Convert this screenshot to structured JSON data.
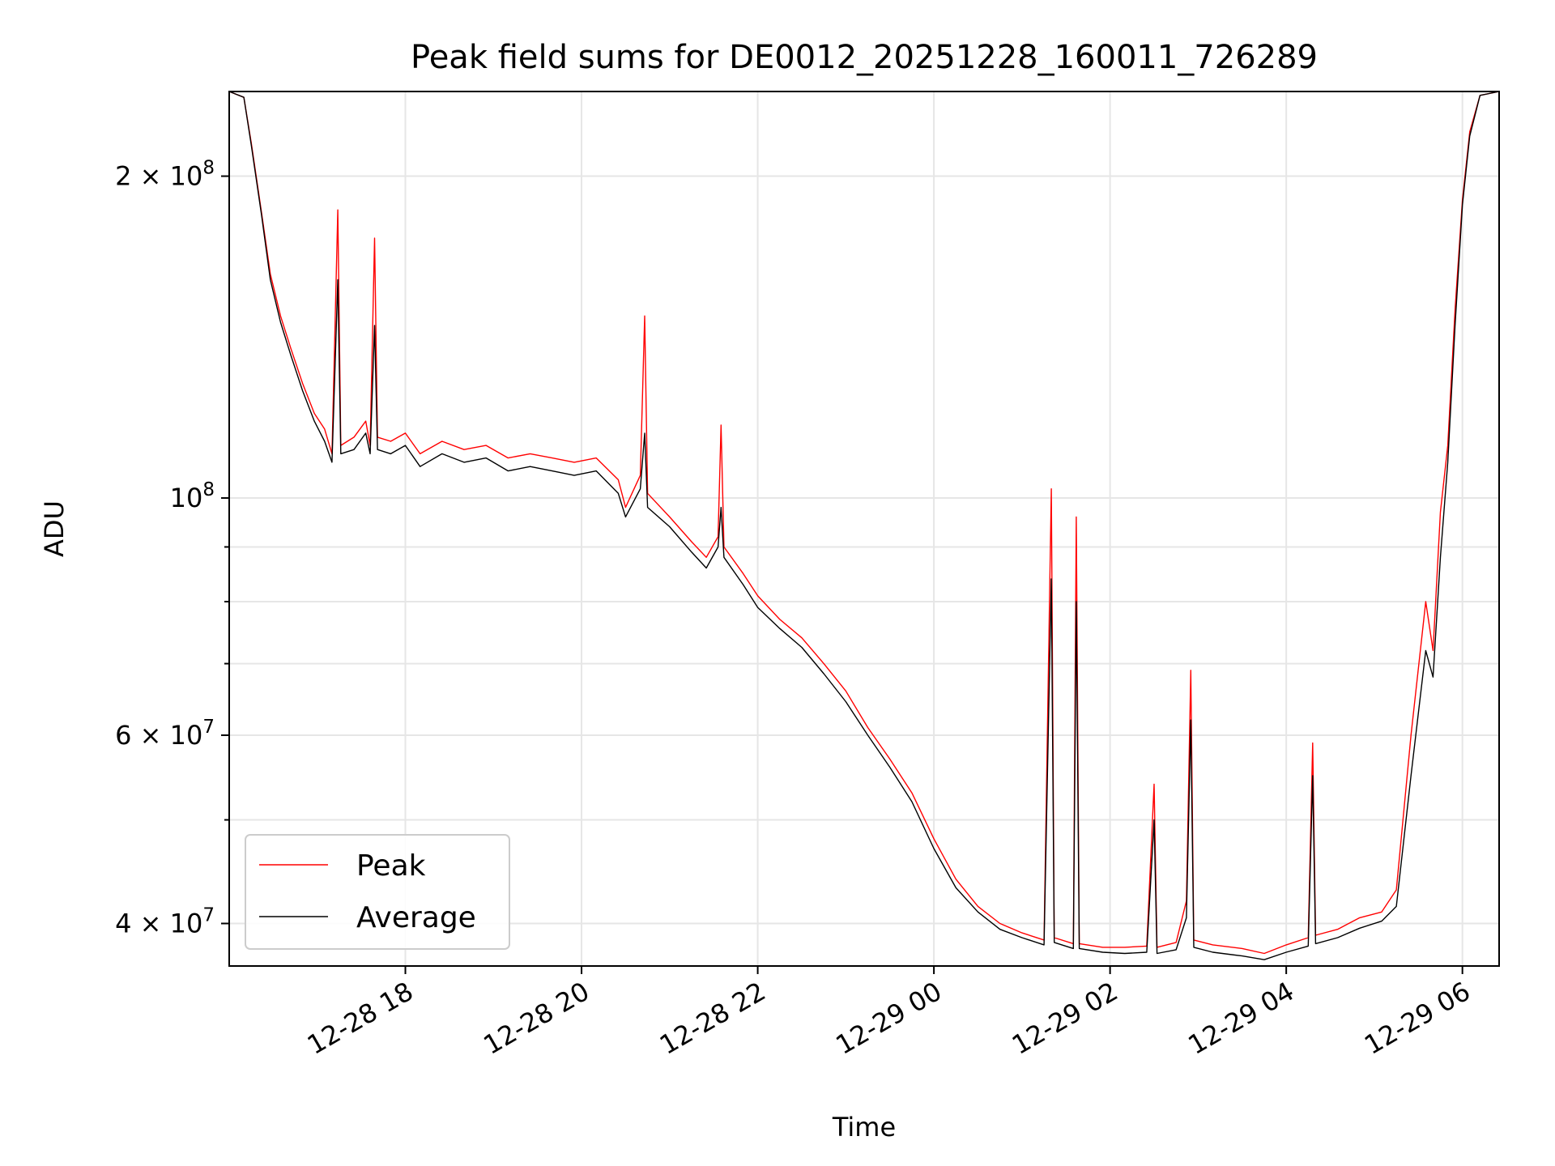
{
  "chart_data": {
    "type": "line",
    "title": "Peak field sums for DE0012_20251228_160011_726289",
    "xlabel": "Time",
    "ylabel": "ADU",
    "yscale": "log",
    "ylim": [
      36500000,
      240000000
    ],
    "xlim": [
      "2025-12-28 16:00",
      "2025-12-29 06:25"
    ],
    "grid": true,
    "legend": "lower-left",
    "x_ticks": [
      {
        "value": "2025-12-28 18:00",
        "label": "12-28 18"
      },
      {
        "value": "2025-12-28 20:00",
        "label": "12-28 20"
      },
      {
        "value": "2025-12-28 22:00",
        "label": "12-28 22"
      },
      {
        "value": "2025-12-29 00:00",
        "label": "12-29 00"
      },
      {
        "value": "2025-12-29 02:00",
        "label": "12-29 02"
      },
      {
        "value": "2025-12-29 04:00",
        "label": "12-29 04"
      },
      {
        "value": "2025-12-29 06:00",
        "label": "12-29 06"
      }
    ],
    "y_ticks": [
      {
        "value": 200000000,
        "label": "2 × 10⁸",
        "mant": "2 × 10",
        "exp": "8"
      },
      {
        "value": 100000000,
        "label": "10⁸",
        "mant": "10",
        "exp": "8"
      },
      {
        "value": 60000000,
        "label": "6 × 10⁷",
        "mant": "6 × 10",
        "exp": "7"
      },
      {
        "value": 40000000,
        "label": "4 × 10⁷",
        "mant": "4 × 10",
        "exp": "7"
      }
    ],
    "y_minor_ticks": [
      50000000,
      70000000,
      80000000,
      90000000,
      300000000
    ],
    "series": [
      {
        "name": "Peak",
        "color": "#ff0000",
        "points": [
          [
            "2025-12-28 16:00",
            240000000
          ],
          [
            "2025-12-28 16:10",
            237000000
          ],
          [
            "2025-12-28 16:15",
            215000000
          ],
          [
            "2025-12-28 16:22",
            185000000
          ],
          [
            "2025-12-28 16:28",
            162000000
          ],
          [
            "2025-12-28 16:35",
            148000000
          ],
          [
            "2025-12-28 16:42",
            138000000
          ],
          [
            "2025-12-28 16:50",
            128000000
          ],
          [
            "2025-12-28 16:58",
            120000000
          ],
          [
            "2025-12-28 17:05",
            116000000
          ],
          [
            "2025-12-28 17:10",
            110000000
          ],
          [
            "2025-12-28 17:14",
            186000000
          ],
          [
            "2025-12-28 17:16",
            112000000
          ],
          [
            "2025-12-28 17:25",
            114000000
          ],
          [
            "2025-12-28 17:33",
            118000000
          ],
          [
            "2025-12-28 17:36",
            112000000
          ],
          [
            "2025-12-28 17:39",
            175000000
          ],
          [
            "2025-12-28 17:41",
            114000000
          ],
          [
            "2025-12-28 17:50",
            113000000
          ],
          [
            "2025-12-28 18:00",
            115000000
          ],
          [
            "2025-12-28 18:10",
            110000000
          ],
          [
            "2025-12-28 18:25",
            113000000
          ],
          [
            "2025-12-28 18:40",
            111000000
          ],
          [
            "2025-12-28 18:55",
            112000000
          ],
          [
            "2025-12-28 19:10",
            109000000
          ],
          [
            "2025-12-28 19:25",
            110000000
          ],
          [
            "2025-12-28 19:40",
            109000000
          ],
          [
            "2025-12-28 19:55",
            108000000
          ],
          [
            "2025-12-28 20:10",
            109000000
          ],
          [
            "2025-12-28 20:25",
            104000000
          ],
          [
            "2025-12-28 20:30",
            98000000
          ],
          [
            "2025-12-28 20:40",
            105000000
          ],
          [
            "2025-12-28 20:43",
            148000000
          ],
          [
            "2025-12-28 20:45",
            101000000
          ],
          [
            "2025-12-28 21:00",
            96000000
          ],
          [
            "2025-12-28 21:15",
            91000000
          ],
          [
            "2025-12-28 21:25",
            88000000
          ],
          [
            "2025-12-28 21:33",
            92000000
          ],
          [
            "2025-12-28 21:35",
            117000000
          ],
          [
            "2025-12-28 21:37",
            90000000
          ],
          [
            "2025-12-28 21:50",
            85000000
          ],
          [
            "2025-12-28 22:00",
            81000000
          ],
          [
            "2025-12-28 22:15",
            77000000
          ],
          [
            "2025-12-28 22:30",
            74000000
          ],
          [
            "2025-12-28 22:45",
            70000000
          ],
          [
            "2025-12-28 23:00",
            66000000
          ],
          [
            "2025-12-28 23:15",
            61000000
          ],
          [
            "2025-12-28 23:30",
            57000000
          ],
          [
            "2025-12-28 23:45",
            53000000
          ],
          [
            "2025-12-29 00:00",
            48000000
          ],
          [
            "2025-12-29 00:15",
            44000000
          ],
          [
            "2025-12-29 00:30",
            41500000
          ],
          [
            "2025-12-29 00:45",
            40000000
          ],
          [
            "2025-12-29 01:00",
            39200000
          ],
          [
            "2025-12-29 01:15",
            38600000
          ],
          [
            "2025-12-29 01:20",
            102000000
          ],
          [
            "2025-12-29 01:22",
            38800000
          ],
          [
            "2025-12-29 01:35",
            38300000
          ],
          [
            "2025-12-29 01:37",
            96000000
          ],
          [
            "2025-12-29 01:39",
            38300000
          ],
          [
            "2025-12-29 01:55",
            38000000
          ],
          [
            "2025-12-29 02:10",
            38000000
          ],
          [
            "2025-12-29 02:25",
            38100000
          ],
          [
            "2025-12-29 02:30",
            54000000
          ],
          [
            "2025-12-29 02:32",
            38000000
          ],
          [
            "2025-12-29 02:45",
            38400000
          ],
          [
            "2025-12-29 02:52",
            42000000
          ],
          [
            "2025-12-29 02:55",
            69000000
          ],
          [
            "2025-12-29 02:57",
            38600000
          ],
          [
            "2025-12-29 03:10",
            38200000
          ],
          [
            "2025-12-29 03:30",
            37900000
          ],
          [
            "2025-12-29 03:45",
            37500000
          ],
          [
            "2025-12-29 04:00",
            38200000
          ],
          [
            "2025-12-29 04:15",
            38800000
          ],
          [
            "2025-12-29 04:18",
            59000000
          ],
          [
            "2025-12-29 04:20",
            39000000
          ],
          [
            "2025-12-29 04:35",
            39500000
          ],
          [
            "2025-12-29 04:50",
            40500000
          ],
          [
            "2025-12-29 05:05",
            41000000
          ],
          [
            "2025-12-29 05:15",
            43000000
          ],
          [
            "2025-12-29 05:25",
            60000000
          ],
          [
            "2025-12-29 05:35",
            80000000
          ],
          [
            "2025-12-29 05:40",
            72000000
          ],
          [
            "2025-12-29 05:45",
            97000000
          ],
          [
            "2025-12-29 05:50",
            112000000
          ],
          [
            "2025-12-29 05:55",
            150000000
          ],
          [
            "2025-12-29 06:00",
            190000000
          ],
          [
            "2025-12-29 06:05",
            220000000
          ],
          [
            "2025-12-29 06:12",
            238000000
          ],
          [
            "2025-12-29 06:25",
            240000000
          ]
        ]
      },
      {
        "name": "Average",
        "color": "#000000",
        "points": [
          [
            "2025-12-28 16:00",
            240000000
          ],
          [
            "2025-12-28 16:10",
            237000000
          ],
          [
            "2025-12-28 16:15",
            214000000
          ],
          [
            "2025-12-28 16:22",
            184000000
          ],
          [
            "2025-12-28 16:28",
            160000000
          ],
          [
            "2025-12-28 16:35",
            146000000
          ],
          [
            "2025-12-28 16:42",
            136000000
          ],
          [
            "2025-12-28 16:50",
            126000000
          ],
          [
            "2025-12-28 16:58",
            118000000
          ],
          [
            "2025-12-28 17:05",
            113000000
          ],
          [
            "2025-12-28 17:10",
            108000000
          ],
          [
            "2025-12-28 17:14",
            160000000
          ],
          [
            "2025-12-28 17:16",
            110000000
          ],
          [
            "2025-12-28 17:25",
            111000000
          ],
          [
            "2025-12-28 17:33",
            115000000
          ],
          [
            "2025-12-28 17:36",
            110000000
          ],
          [
            "2025-12-28 17:39",
            145000000
          ],
          [
            "2025-12-28 17:41",
            111000000
          ],
          [
            "2025-12-28 17:50",
            110000000
          ],
          [
            "2025-12-28 18:00",
            112000000
          ],
          [
            "2025-12-28 18:10",
            107000000
          ],
          [
            "2025-12-28 18:25",
            110000000
          ],
          [
            "2025-12-28 18:40",
            108000000
          ],
          [
            "2025-12-28 18:55",
            109000000
          ],
          [
            "2025-12-28 19:10",
            106000000
          ],
          [
            "2025-12-28 19:25",
            107000000
          ],
          [
            "2025-12-28 19:40",
            106000000
          ],
          [
            "2025-12-28 19:55",
            105000000
          ],
          [
            "2025-12-28 20:10",
            106000000
          ],
          [
            "2025-12-28 20:25",
            101000000
          ],
          [
            "2025-12-28 20:30",
            96000000
          ],
          [
            "2025-12-28 20:40",
            102000000
          ],
          [
            "2025-12-28 20:43",
            115000000
          ],
          [
            "2025-12-28 20:45",
            98000000
          ],
          [
            "2025-12-28 21:00",
            94000000
          ],
          [
            "2025-12-28 21:15",
            89000000
          ],
          [
            "2025-12-28 21:25",
            86000000
          ],
          [
            "2025-12-28 21:33",
            90000000
          ],
          [
            "2025-12-28 21:35",
            98000000
          ],
          [
            "2025-12-28 21:37",
            88000000
          ],
          [
            "2025-12-28 21:50",
            83000000
          ],
          [
            "2025-12-28 22:00",
            79000000
          ],
          [
            "2025-12-28 22:15",
            75500000
          ],
          [
            "2025-12-28 22:30",
            72500000
          ],
          [
            "2025-12-28 22:45",
            68500000
          ],
          [
            "2025-12-28 23:00",
            64500000
          ],
          [
            "2025-12-28 23:15",
            60000000
          ],
          [
            "2025-12-28 23:30",
            56000000
          ],
          [
            "2025-12-28 23:45",
            52000000
          ],
          [
            "2025-12-29 00:00",
            47000000
          ],
          [
            "2025-12-29 00:15",
            43200000
          ],
          [
            "2025-12-29 00:30",
            41000000
          ],
          [
            "2025-12-29 00:45",
            39500000
          ],
          [
            "2025-12-29 01:00",
            38800000
          ],
          [
            "2025-12-29 01:15",
            38200000
          ],
          [
            "2025-12-29 01:20",
            84000000
          ],
          [
            "2025-12-29 01:22",
            38400000
          ],
          [
            "2025-12-29 01:35",
            37900000
          ],
          [
            "2025-12-29 01:37",
            80000000
          ],
          [
            "2025-12-29 01:39",
            37900000
          ],
          [
            "2025-12-29 01:55",
            37600000
          ],
          [
            "2025-12-29 02:10",
            37500000
          ],
          [
            "2025-12-29 02:25",
            37600000
          ],
          [
            "2025-12-29 02:30",
            50000000
          ],
          [
            "2025-12-29 02:32",
            37500000
          ],
          [
            "2025-12-29 02:45",
            37800000
          ],
          [
            "2025-12-29 02:52",
            40500000
          ],
          [
            "2025-12-29 02:55",
            62000000
          ],
          [
            "2025-12-29 02:57",
            38000000
          ],
          [
            "2025-12-29 03:10",
            37600000
          ],
          [
            "2025-12-29 03:30",
            37300000
          ],
          [
            "2025-12-29 03:45",
            37000000
          ],
          [
            "2025-12-29 04:00",
            37600000
          ],
          [
            "2025-12-29 04:15",
            38100000
          ],
          [
            "2025-12-29 04:18",
            55000000
          ],
          [
            "2025-12-29 04:20",
            38300000
          ],
          [
            "2025-12-29 04:35",
            38800000
          ],
          [
            "2025-12-29 04:50",
            39600000
          ],
          [
            "2025-12-29 05:05",
            40200000
          ],
          [
            "2025-12-29 05:15",
            41500000
          ],
          [
            "2025-12-29 05:25",
            55000000
          ],
          [
            "2025-12-29 05:35",
            72000000
          ],
          [
            "2025-12-29 05:40",
            68000000
          ],
          [
            "2025-12-29 05:45",
            88000000
          ],
          [
            "2025-12-29 05:50",
            108000000
          ],
          [
            "2025-12-29 05:55",
            145000000
          ],
          [
            "2025-12-29 06:00",
            188000000
          ],
          [
            "2025-12-29 06:05",
            218000000
          ],
          [
            "2025-12-29 06:12",
            238000000
          ],
          [
            "2025-12-29 06:25",
            240000000
          ]
        ]
      }
    ]
  }
}
